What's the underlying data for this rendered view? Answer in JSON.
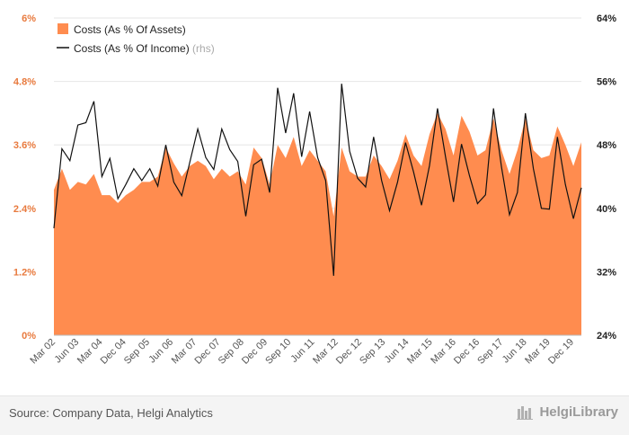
{
  "chart_data": {
    "type": "area",
    "x_labels": [
      "Mar 02",
      "Jun 03",
      "Mar 04",
      "Dec 04",
      "Sep 05",
      "Jun 06",
      "Mar 07",
      "Dec 07",
      "Sep 08",
      "Dec 09",
      "Sep 10",
      "Jun 11",
      "Mar 12",
      "Dec 12",
      "Sep 13",
      "Jun 14",
      "Mar 15",
      "Mar 16",
      "Dec 16",
      "Sep 17",
      "Jun 18",
      "Mar 19",
      "Dec 19"
    ],
    "y_left": {
      "ticks": [
        "0%",
        "1.2%",
        "2.4%",
        "3.6%",
        "4.8%",
        "6%"
      ],
      "min": 0,
      "max": 6
    },
    "y_right": {
      "ticks": [
        "24%",
        "32%",
        "40%",
        "48%",
        "56%",
        "64%"
      ],
      "min": 24,
      "max": 64
    },
    "series": [
      {
        "name": "Costs (As % Of Assets)",
        "axis": "left",
        "color": "#ff8c4f",
        "values": [
          2.75,
          3.15,
          2.75,
          2.9,
          2.85,
          3.05,
          2.65,
          2.65,
          2.5,
          2.65,
          2.75,
          2.9,
          2.9,
          3.0,
          3.55,
          3.25,
          3.0,
          3.2,
          3.3,
          3.2,
          2.95,
          3.15,
          3.0,
          3.1,
          2.85,
          3.55,
          3.35,
          2.85,
          3.6,
          3.35,
          3.75,
          3.2,
          3.5,
          3.3,
          3.1,
          2.25,
          3.55,
          3.1,
          3.0,
          3.0,
          3.4,
          3.2,
          2.95,
          3.3,
          3.8,
          3.4,
          3.2,
          3.8,
          4.2,
          3.9,
          3.4,
          4.15,
          3.85,
          3.4,
          3.5,
          4.1,
          3.5,
          3.05,
          3.5,
          4.1,
          3.5,
          3.35,
          3.4,
          3.95,
          3.6,
          3.2,
          3.65
        ]
      },
      {
        "name": "Costs (As % Of Income)",
        "name_suffix": "(rhs)",
        "axis": "right",
        "color": "#111111",
        "values": [
          37.5,
          47.5,
          46,
          50.5,
          50.8,
          53.5,
          44,
          46.3,
          41.2,
          43,
          45,
          43.5,
          45,
          42.8,
          48,
          43.3,
          41.6,
          45.8,
          50,
          46.4,
          44.9,
          50,
          47.4,
          45.9,
          39,
          45.5,
          46.2,
          42,
          55.2,
          49.5,
          54.5,
          46.5,
          52.2,
          46.4,
          43.5,
          31.5,
          55.7,
          47.2,
          43.8,
          42.7,
          49,
          43.5,
          39.7,
          43.3,
          48.3,
          44.6,
          40.4,
          45.4,
          52.6,
          46.5,
          40.8,
          48.1,
          44.1,
          40.6,
          41.7,
          52.6,
          45.2,
          39.2,
          42,
          52,
          45,
          40,
          39.9,
          49,
          43,
          38.7,
          42.6
        ]
      }
    ]
  },
  "legend": {
    "rhs_label": "(rhs)"
  },
  "footer": {
    "source": "Source: Company Data, Helgi Analytics",
    "brand": "HelgiLibrary"
  }
}
